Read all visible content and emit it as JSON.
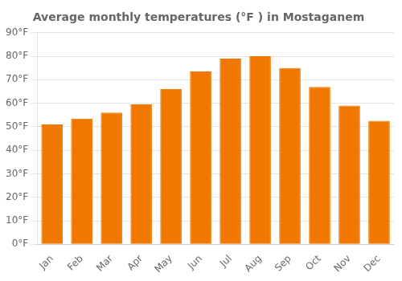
{
  "chart_data": {
    "type": "bar",
    "title": "Average monthly temperatures (°F ) in Mostaganem",
    "categories": [
      "Jan",
      "Feb",
      "Mar",
      "Apr",
      "May",
      "Jun",
      "Jul",
      "Aug",
      "Sep",
      "Oct",
      "Nov",
      "Dec"
    ],
    "values": [
      51,
      53.5,
      56,
      59.5,
      66,
      73.5,
      79,
      80,
      75,
      67,
      59,
      52.5
    ],
    "color": "#F07800",
    "ylim": [
      0,
      90
    ],
    "yticks": [
      {
        "value": 0,
        "label": "0°F"
      },
      {
        "value": 10,
        "label": "10°F"
      },
      {
        "value": 20,
        "label": "20°F"
      },
      {
        "value": 30,
        "label": "30°F"
      },
      {
        "value": 40,
        "label": "40°F"
      },
      {
        "value": 50,
        "label": "50°F"
      },
      {
        "value": 60,
        "label": "60°F"
      },
      {
        "value": 70,
        "label": "70°F"
      },
      {
        "value": 80,
        "label": "80°F"
      },
      {
        "value": 90,
        "label": "90°F"
      }
    ],
    "grid": true
  }
}
